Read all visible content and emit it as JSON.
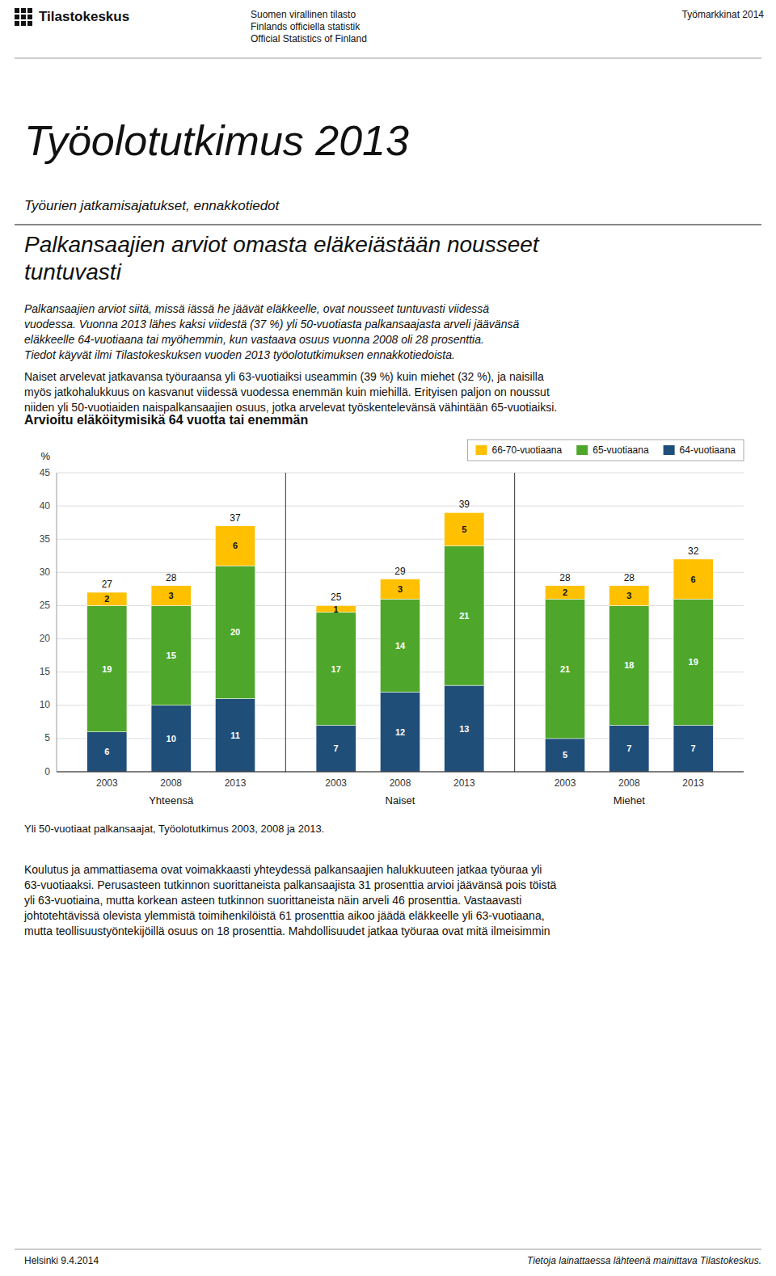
{
  "logo_text": "Tilastokeskus",
  "header": [
    "Suomen virallinen tilasto",
    "Finlands officiella statistik",
    "Official Statistics of Finland"
  ],
  "header_right": "Työmarkkinat 2014",
  "main_title": "Työolotutkimus 2013",
  "sub_title": "Työurien jatkamisajatukset, ennakkotiedot",
  "section_title": [
    "Palkansaajien arviot omasta eläkeiästään nousseet",
    "tuntuvasti"
  ],
  "body_text1": [
    "Palkansaajien arviot siitä, missä iässä he jäävät eläkkeelle, ovat nousseet tuntuvasti viidessä",
    "vuodessa. Vuonna 2013 lähes kaksi viidestä (37 %) yli 50-vuotiasta palkansaajasta arveli jäävänsä",
    "eläkkeelle 64-vuotiaana tai myöhemmin, kun vastaava osuus vuonna 2008 oli 28 prosenttia.",
    "Tiedot käyvät ilmi Tilastokeskuksen vuoden 2013 työolotutkimuksen ennakkotiedoista."
  ],
  "body_text2": [
    "Naiset arvelevat jatkavansa työuraansa yli 63-vuotiaiksi useammin (39 %) kuin miehet (32 %), ja naisilla",
    "myös jatkohalukkuus on kasvanut viidessä vuodessa enemmän kuin miehillä. Erityisen paljon on noussut",
    "niiden yli 50-vuotiaiden naispalkansaajien osuus, jotka arvelevat työskentelevänsä vähintään 65-vuotiaiksi."
  ],
  "caption": "Yli 50-vuotiaat palkansaajat, Työolotutkimus 2003, 2008 ja 2013.",
  "body_text3": [
    "Koulutus ja ammattiasema ovat voimakkaasti yhteydessä palkansaajien halukkuuteen jatkaa työuraa yli",
    "63-vuotiaaksi. Perusasteen tutkinnon suorittaneista palkansaajista 31 prosenttia arvioi jäävänsä pois töistä",
    "yli 63-vuotiaina, mutta korkean asteen tutkinnon suorittaneista näin arveli 46 prosenttia. Vastaavasti",
    "johtotehtävissä olevista ylemmistä toimihenkilöistä 61 prosenttia aikoo jäädä eläkkeelle yli 63-vuotiaana,",
    "mutta teollisuustyöntekijöillä osuus on 18 prosenttia. Mahdollisuudet jatkaa työuraa ovat mitä ilmeisimmin"
  ],
  "footer_left": "Helsinki 9.4.2014",
  "footer_right": "Tietoja lainattaessa lähteenä mainittava Tilastokeskus.",
  "chart_data": {
    "type": "bar",
    "stacked": true,
    "data_labels": true,
    "grid": true,
    "legend": "upper right",
    "title": "Arvioitu eläköitymisikä 64 vuotta tai enemmän",
    "ylabel": "%",
    "categories": [
      "2003",
      "2008",
      "2013",
      "2003",
      "2008",
      "2013",
      "2003",
      "2008",
      "2013"
    ],
    "groups": [
      "Yhteensä",
      "Naiset",
      "Miehet"
    ],
    "series": [
      {
        "name": "64-vuotiaana",
        "color": "#1f4e79",
        "values": [
          6,
          10,
          11,
          7,
          12,
          13,
          5,
          7,
          7
        ]
      },
      {
        "name": "65-vuotiaana",
        "color": "#4ea72a",
        "values": [
          19,
          15,
          20,
          17,
          14,
          21,
          21,
          18,
          19
        ]
      },
      {
        "name": "66-70-vuotiaana",
        "color": "#ffc000",
        "values": [
          2,
          3,
          6,
          1,
          3,
          5,
          2,
          3,
          6
        ]
      }
    ],
    "totals": [
      27,
      28,
      37,
      25,
      29,
      39,
      28,
      28,
      32
    ],
    "ylim": [
      0,
      45
    ],
    "yticks": [
      0,
      5,
      10,
      15,
      20,
      25,
      30,
      35,
      40,
      45
    ]
  }
}
